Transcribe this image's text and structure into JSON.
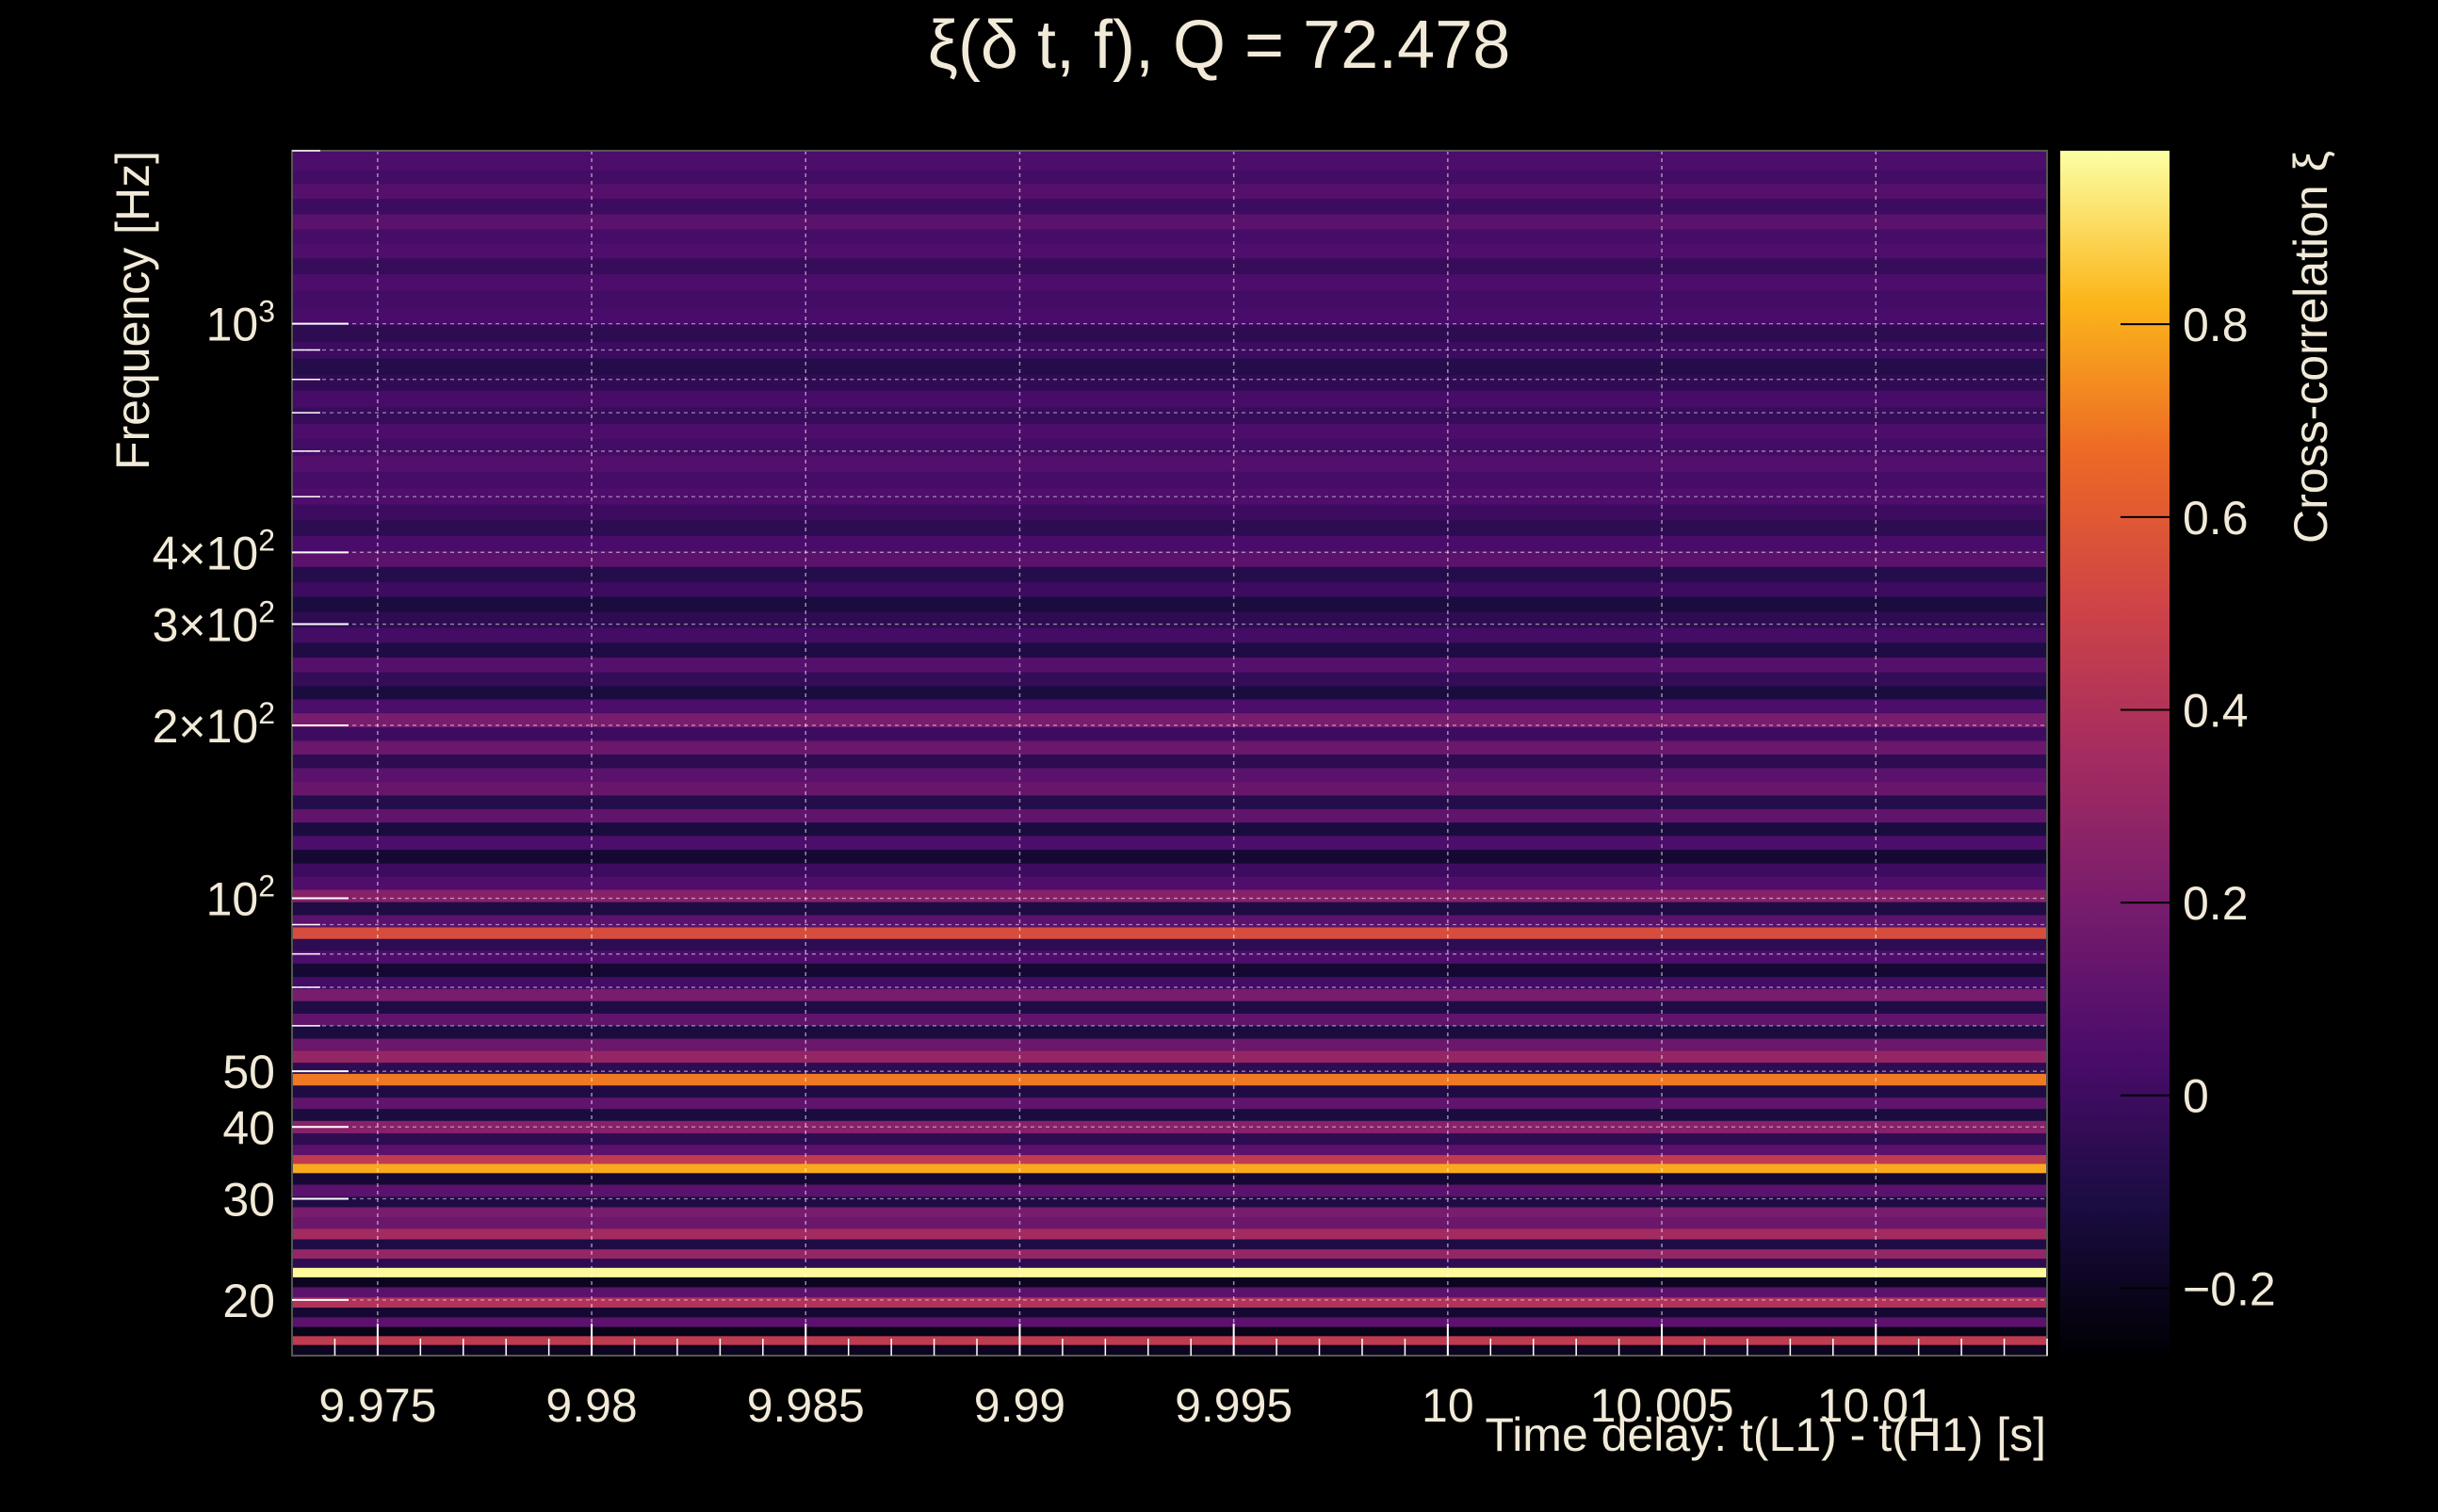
{
  "chart_data": {
    "type": "heatmap",
    "title": "ξ(δ t, f), Q = 72.478",
    "xlabel": "Time delay: t(L1) - t(H1) [s]",
    "ylabel": "Frequency [Hz]",
    "colorbar_label": "Cross-correlation ξ",
    "colormap": "inferno",
    "x_log": false,
    "y_log": true,
    "grid": true,
    "xlim": [
      9.973,
      10.014
    ],
    "ylim": [
      16,
      2000
    ],
    "zlim": [
      -0.27,
      0.98
    ],
    "x_ticks": [
      {
        "value": 9.975,
        "label": "9.975"
      },
      {
        "value": 9.98,
        "label": "9.98"
      },
      {
        "value": 9.985,
        "label": "9.985"
      },
      {
        "value": 9.99,
        "label": "9.99"
      },
      {
        "value": 9.995,
        "label": "9.995"
      },
      {
        "value": 10,
        "label": "10"
      },
      {
        "value": 10.005,
        "label": "10.005"
      },
      {
        "value": 10.01,
        "label": "10.01"
      }
    ],
    "y_ticks": [
      {
        "value": 20,
        "label": "20",
        "sup": ""
      },
      {
        "value": 30,
        "label": "30",
        "sup": ""
      },
      {
        "value": 40,
        "label": "40",
        "sup": ""
      },
      {
        "value": 50,
        "label": "50",
        "sup": ""
      },
      {
        "value": 100,
        "label": "10",
        "sup": "2"
      },
      {
        "value": 200,
        "label": "2×10",
        "sup": "2"
      },
      {
        "value": 300,
        "label": "3×10",
        "sup": "2"
      },
      {
        "value": 400,
        "label": "4×10",
        "sup": "2"
      },
      {
        "value": 1000,
        "label": "10",
        "sup": "3"
      }
    ],
    "colorbar_ticks": [
      {
        "value": -0.2,
        "label": "−0.2"
      },
      {
        "value": 0,
        "label": "0"
      },
      {
        "value": 0.2,
        "label": "0.2"
      },
      {
        "value": 0.4,
        "label": "0.4"
      },
      {
        "value": 0.6,
        "label": "0.6"
      },
      {
        "value": 0.8,
        "label": "0.8"
      }
    ],
    "frequency_rows": [
      {
        "f": 1900,
        "xi": 0.05
      },
      {
        "f": 1800,
        "xi": 0.02
      },
      {
        "f": 1700,
        "xi": 0.08
      },
      {
        "f": 1600,
        "xi": 0.0
      },
      {
        "f": 1500,
        "xi": 0.1
      },
      {
        "f": 1420,
        "xi": 0.03
      },
      {
        "f": 1340,
        "xi": 0.06
      },
      {
        "f": 1260,
        "xi": -0.02
      },
      {
        "f": 1180,
        "xi": 0.05
      },
      {
        "f": 1100,
        "xi": 0.02
      },
      {
        "f": 1030,
        "xi": 0.04
      },
      {
        "f": 960,
        "xi": -0.05
      },
      {
        "f": 900,
        "xi": 0.0
      },
      {
        "f": 840,
        "xi": -0.08
      },
      {
        "f": 790,
        "xi": -0.04
      },
      {
        "f": 740,
        "xi": 0.03
      },
      {
        "f": 690,
        "xi": -0.02
      },
      {
        "f": 650,
        "xi": 0.05
      },
      {
        "f": 610,
        "xi": 0.02
      },
      {
        "f": 570,
        "xi": 0.07
      },
      {
        "f": 535,
        "xi": 0.03
      },
      {
        "f": 500,
        "xi": 0.06
      },
      {
        "f": 470,
        "xi": 0.0
      },
      {
        "f": 440,
        "xi": -0.05
      },
      {
        "f": 415,
        "xi": 0.04
      },
      {
        "f": 390,
        "xi": 0.1
      },
      {
        "f": 365,
        "xi": -0.08
      },
      {
        "f": 345,
        "xi": 0.0
      },
      {
        "f": 325,
        "xi": -0.12
      },
      {
        "f": 305,
        "xi": -0.05
      },
      {
        "f": 287,
        "xi": 0.02
      },
      {
        "f": 270,
        "xi": -0.1
      },
      {
        "f": 255,
        "xi": 0.08
      },
      {
        "f": 240,
        "xi": -0.03
      },
      {
        "f": 228,
        "xi": -0.12
      },
      {
        "f": 216,
        "xi": 0.05
      },
      {
        "f": 204,
        "xi": 0.2
      },
      {
        "f": 193,
        "xi": 0.0
      },
      {
        "f": 183,
        "xi": 0.15
      },
      {
        "f": 173,
        "xi": -0.05
      },
      {
        "f": 164,
        "xi": 0.1
      },
      {
        "f": 155,
        "xi": 0.14
      },
      {
        "f": 147,
        "xi": -0.08
      },
      {
        "f": 139,
        "xi": 0.12
      },
      {
        "f": 132,
        "xi": -0.12
      },
      {
        "f": 125,
        "xi": 0.05
      },
      {
        "f": 118,
        "xi": -0.15
      },
      {
        "f": 112,
        "xi": 0.0
      },
      {
        "f": 106,
        "xi": 0.06
      },
      {
        "f": 101,
        "xi": 0.25
      },
      {
        "f": 96,
        "xi": -0.1
      },
      {
        "f": 91,
        "xi": 0.1
      },
      {
        "f": 87,
        "xi": 0.55
      },
      {
        "f": 83,
        "xi": -0.05
      },
      {
        "f": 79,
        "xi": 0.05
      },
      {
        "f": 75,
        "xi": -0.15
      },
      {
        "f": 71,
        "xi": 0.02
      },
      {
        "f": 68,
        "xi": 0.2
      },
      {
        "f": 64.5,
        "xi": -0.1
      },
      {
        "f": 61.5,
        "xi": 0.12
      },
      {
        "f": 58.5,
        "xi": -0.12
      },
      {
        "f": 55.5,
        "xi": 0.15
      },
      {
        "f": 53,
        "xi": 0.3
      },
      {
        "f": 50.5,
        "xi": -0.05
      },
      {
        "f": 48.5,
        "xi": 0.7
      },
      {
        "f": 46,
        "xi": -0.1
      },
      {
        "f": 44,
        "xi": 0.12
      },
      {
        "f": 42,
        "xi": -0.12
      },
      {
        "f": 40,
        "xi": 0.25
      },
      {
        "f": 38,
        "xi": -0.05
      },
      {
        "f": 36.5,
        "xi": 0.1
      },
      {
        "f": 35,
        "xi": 0.45
      },
      {
        "f": 34,
        "xi": 0.8
      },
      {
        "f": 32.5,
        "xi": -0.15
      },
      {
        "f": 31,
        "xi": 0.1
      },
      {
        "f": 29.5,
        "xi": -0.1
      },
      {
        "f": 28.5,
        "xi": 0.2
      },
      {
        "f": 27.2,
        "xi": 0.15
      },
      {
        "f": 26,
        "xi": 0.35
      },
      {
        "f": 25,
        "xi": -0.1
      },
      {
        "f": 24,
        "xi": 0.3
      },
      {
        "f": 23.2,
        "xi": -0.05
      },
      {
        "f": 22.3,
        "xi": 0.97
      },
      {
        "f": 21.5,
        "xi": -0.2
      },
      {
        "f": 20.6,
        "xi": 0.1
      },
      {
        "f": 19.8,
        "xi": 0.4
      },
      {
        "f": 19,
        "xi": -0.15
      },
      {
        "f": 18.3,
        "xi": 0.1
      },
      {
        "f": 17.6,
        "xi": -0.22
      },
      {
        "f": 17,
        "xi": 0.45
      },
      {
        "f": 16.4,
        "xi": -0.2
      }
    ]
  }
}
